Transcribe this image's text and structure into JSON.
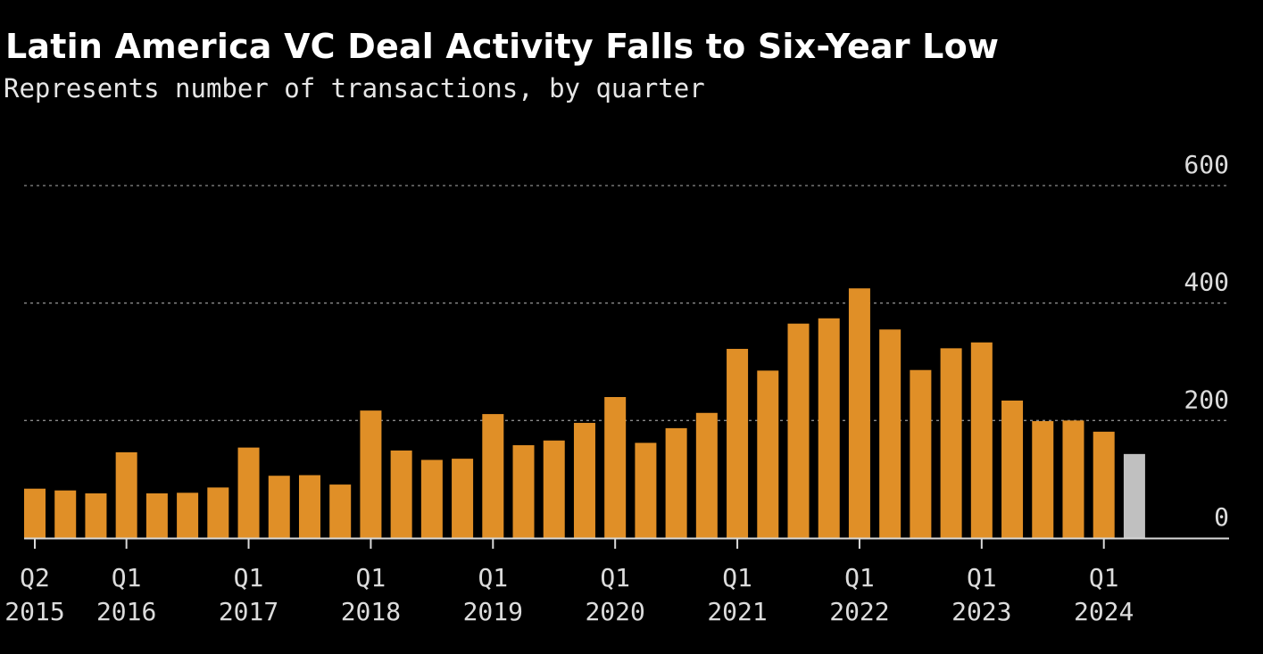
{
  "chart_data": {
    "type": "bar",
    "title": "Latin America VC Deal Activity Falls to Six-Year Low",
    "subtitle": "Represents number of transactions, by quarter",
    "xlabel": "",
    "ylabel": "",
    "ylim": [
      0,
      600
    ],
    "yticks": [
      0,
      200,
      400,
      600
    ],
    "grid": true,
    "categories": [
      "Q2 2015",
      "Q3 2015",
      "Q4 2015",
      "Q1 2016",
      "Q2 2016",
      "Q3 2016",
      "Q4 2016",
      "Q1 2017",
      "Q2 2017",
      "Q3 2017",
      "Q4 2017",
      "Q1 2018",
      "Q2 2018",
      "Q3 2018",
      "Q4 2018",
      "Q1 2019",
      "Q2 2019",
      "Q3 2019",
      "Q4 2019",
      "Q1 2020",
      "Q2 2020",
      "Q3 2020",
      "Q4 2020",
      "Q1 2021",
      "Q2 2021",
      "Q3 2021",
      "Q4 2021",
      "Q1 2022",
      "Q2 2022",
      "Q3 2022",
      "Q4 2022",
      "Q1 2023",
      "Q2 2023",
      "Q3 2023",
      "Q4 2023",
      "Q1 2024",
      "Q2 2024"
    ],
    "values": [
      84,
      81,
      76,
      146,
      76,
      77,
      86,
      154,
      106,
      107,
      91,
      217,
      149,
      133,
      135,
      211,
      158,
      166,
      196,
      240,
      162,
      187,
      213,
      322,
      285,
      365,
      374,
      425,
      355,
      286,
      323,
      333,
      234,
      199,
      200,
      181,
      143
    ],
    "colors": [
      "#e08f27",
      "#e08f27",
      "#e08f27",
      "#e08f27",
      "#e08f27",
      "#e08f27",
      "#e08f27",
      "#e08f27",
      "#e08f27",
      "#e08f27",
      "#e08f27",
      "#e08f27",
      "#e08f27",
      "#e08f27",
      "#e08f27",
      "#e08f27",
      "#e08f27",
      "#e08f27",
      "#e08f27",
      "#e08f27",
      "#e08f27",
      "#e08f27",
      "#e08f27",
      "#e08f27",
      "#e08f27",
      "#e08f27",
      "#e08f27",
      "#e08f27",
      "#e08f27",
      "#e08f27",
      "#e08f27",
      "#e08f27",
      "#e08f27",
      "#e08f27",
      "#e08f27",
      "#e08f27",
      "#c0c0c0"
    ],
    "xtick_labels": [
      {
        "index": 0,
        "line1": "Q2",
        "line2": "2015"
      },
      {
        "index": 3,
        "line1": "Q1",
        "line2": "2016"
      },
      {
        "index": 7,
        "line1": "Q1",
        "line2": "2017"
      },
      {
        "index": 11,
        "line1": "Q1",
        "line2": "2018"
      },
      {
        "index": 15,
        "line1": "Q1",
        "line2": "2019"
      },
      {
        "index": 19,
        "line1": "Q1",
        "line2": "2020"
      },
      {
        "index": 23,
        "line1": "Q1",
        "line2": "2021"
      },
      {
        "index": 27,
        "line1": "Q1",
        "line2": "2022"
      },
      {
        "index": 31,
        "line1": "Q1",
        "line2": "2023"
      },
      {
        "index": 35,
        "line1": "Q1",
        "line2": "2024"
      }
    ]
  }
}
